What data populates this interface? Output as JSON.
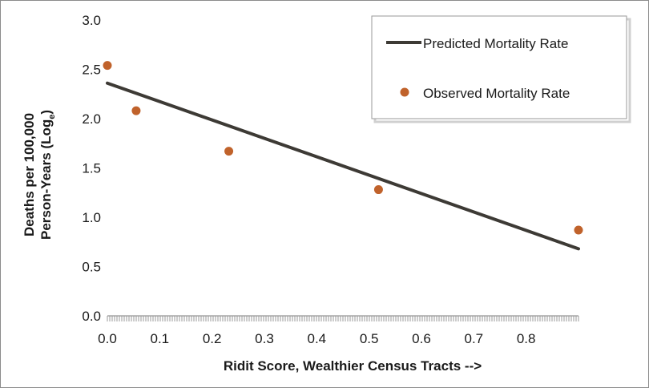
{
  "chart_data": {
    "type": "scatter",
    "xlabel": "Ridit Score, Wealthier Census Tracts -->",
    "ylabel_line1": "Deaths per 100,000",
    "ylabel_line2_prefix": "Person-Years (Log",
    "ylabel_line2_sub": "e",
    "ylabel_line2_suffix": ")",
    "xlim": [
      0,
      0.9
    ],
    "ylim": [
      0,
      3
    ],
    "x_ticks": [
      "0.0",
      "0.1",
      "0.2",
      "0.3",
      "0.4",
      "0.5",
      "0.6",
      "0.7",
      "0.8"
    ],
    "x_tick_values": [
      0,
      0.1,
      0.2,
      0.3,
      0.4,
      0.5,
      0.6,
      0.7,
      0.8
    ],
    "y_ticks": [
      "0.0",
      "0.5",
      "1.0",
      "1.5",
      "2.0",
      "2.5",
      "3.0"
    ],
    "y_tick_values": [
      0,
      0.5,
      1,
      1.5,
      2,
      2.5,
      3
    ],
    "legend_position": "top-right",
    "series": [
      {
        "name": "Predicted Mortality Rate",
        "kind": "line",
        "color": "#3d3a35",
        "x": [
          0.0,
          0.9
        ],
        "y": [
          2.36,
          0.68
        ]
      },
      {
        "name": "Observed Mortality Rate",
        "kind": "scatter",
        "color": "#c0622b",
        "x": [
          0.0,
          0.055,
          0.232,
          0.518,
          0.9
        ],
        "y": [
          2.54,
          2.08,
          1.67,
          1.28,
          0.87
        ]
      }
    ]
  }
}
